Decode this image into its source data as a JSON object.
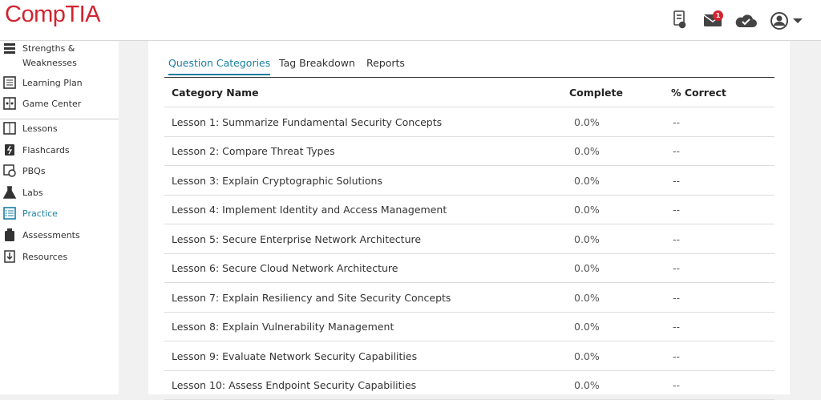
{
  "header": {
    "logo": "CompTIA",
    "notification_count": "1"
  },
  "sidebar": {
    "items": [
      {
        "label": "Strengths & Weaknesses"
      },
      {
        "label": "Learning Plan"
      },
      {
        "label": "Game Center"
      },
      {
        "label": "Lessons"
      },
      {
        "label": "Flashcards"
      },
      {
        "label": "PBQs"
      },
      {
        "label": "Labs"
      },
      {
        "label": "Practice",
        "active": true
      },
      {
        "label": "Assessments"
      },
      {
        "label": "Resources"
      }
    ]
  },
  "tabs": [
    {
      "label": "Question Categories",
      "active": true
    },
    {
      "label": "Tag Breakdown"
    },
    {
      "label": "Reports"
    }
  ],
  "table": {
    "columns": [
      "Category Name",
      "Complete",
      "% Correct"
    ],
    "rows": [
      [
        "Lesson 1: Summarize Fundamental Security Concepts",
        "0.0%",
        "--"
      ],
      [
        "Lesson 2: Compare Threat Types",
        "0.0%",
        "--"
      ],
      [
        "Lesson 3: Explain Cryptographic Solutions",
        "0.0%",
        "--"
      ],
      [
        "Lesson 4: Implement Identity and Access Management",
        "0.0%",
        "--"
      ],
      [
        "Lesson 5: Secure Enterprise Network Architecture",
        "0.0%",
        "--"
      ],
      [
        "Lesson 6: Secure Cloud Network Architecture",
        "0.0%",
        "--"
      ],
      [
        "Lesson 7: Explain Resiliency and Site Security Concepts",
        "0.0%",
        "--"
      ],
      [
        "Lesson 8: Explain Vulnerability Management",
        "0.0%",
        "--"
      ],
      [
        "Lesson 9: Evaluate Network Security Capabilities",
        "0.0%",
        "--"
      ],
      [
        "Lesson 10: Assess Endpoint Security Capabilities",
        "0.0%",
        "--"
      ]
    ]
  }
}
